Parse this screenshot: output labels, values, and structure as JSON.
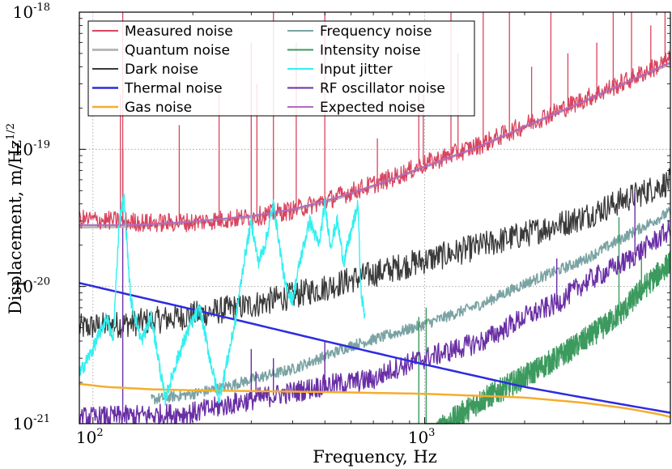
{
  "chart_data": {
    "type": "line",
    "title": "",
    "xlabel": "Frequency, Hz",
    "ylabel": "Displacement, m/Hz",
    "ylabel_exponent": "1/2",
    "xscale": "log",
    "yscale": "log",
    "xlim": [
      91,
      5500
    ],
    "ylim": [
      1e-21,
      1e-18
    ],
    "grid": true,
    "legend_position": "top-left",
    "x_ticks": [
      {
        "value": 100,
        "base": "10",
        "exp": "2"
      },
      {
        "value": 1000,
        "base": "10",
        "exp": "3"
      }
    ],
    "y_ticks": [
      {
        "value": 1e-21,
        "base": "10",
        "exp": "-21"
      },
      {
        "value": 1e-20,
        "base": "10",
        "exp": "-20"
      },
      {
        "value": 1e-19,
        "base": "10",
        "exp": "-19"
      },
      {
        "value": 1e-18,
        "base": "10",
        "exp": "-18"
      }
    ],
    "series": [
      {
        "name": "Measured noise",
        "color": "#d9455f",
        "width": 1.3,
        "points": [
          [
            91,
            3.1e-20
          ],
          [
            120,
            3e-20
          ],
          [
            150,
            2.9e-20
          ],
          [
            200,
            2.95e-20
          ],
          [
            300,
            3.2e-20
          ],
          [
            400,
            3.6e-20
          ],
          [
            500,
            4.2e-20
          ],
          [
            600,
            4.9e-20
          ],
          [
            800,
            6.2e-20
          ],
          [
            1000,
            7.8e-20
          ],
          [
            1500,
            1.1e-19
          ],
          [
            2000,
            1.5e-19
          ],
          [
            3000,
            2.3e-19
          ],
          [
            4000,
            3.1e-19
          ],
          [
            5500,
            4.5e-19
          ]
        ],
        "spikes": [
          [
            121,
            2.5e-19
          ],
          [
            123,
            1e-18
          ],
          [
            182,
            1.5e-19
          ],
          [
            240,
            2.5e-19
          ],
          [
            300,
            6e-19
          ],
          [
            312,
            3e-19
          ],
          [
            350,
            1e-18
          ],
          [
            410,
            6e-19
          ],
          [
            500,
            1e-18
          ],
          [
            720,
            1.2e-19
          ],
          [
            960,
            3e-19
          ],
          [
            990,
            2.5e-19
          ],
          [
            1200,
            1e-18
          ],
          [
            1260,
            5e-19
          ],
          [
            1500,
            1e-18
          ],
          [
            1800,
            1e-18
          ],
          [
            2100,
            4e-19
          ],
          [
            2400,
            1e-18
          ],
          [
            2700,
            5e-19
          ],
          [
            3300,
            6e-19
          ],
          [
            3700,
            1e-18
          ],
          [
            4200,
            1e-18
          ],
          [
            4800,
            8e-19
          ],
          [
            5300,
            1e-18
          ]
        ]
      },
      {
        "name": "Quantum noise",
        "color": "#b8b8b8",
        "width": 3,
        "points": [
          [
            91,
            2.7e-20
          ],
          [
            120,
            2.72e-20
          ],
          [
            150,
            2.78e-20
          ],
          [
            200,
            2.9e-20
          ],
          [
            300,
            3.2e-20
          ],
          [
            400,
            3.6e-20
          ],
          [
            500,
            4.1e-20
          ],
          [
            600,
            4.7e-20
          ],
          [
            800,
            6e-20
          ],
          [
            1000,
            7.4e-20
          ],
          [
            1500,
            1.07e-19
          ],
          [
            2000,
            1.45e-19
          ],
          [
            3000,
            2.2e-19
          ],
          [
            4000,
            3e-19
          ],
          [
            5500,
            4.2e-19
          ]
        ]
      },
      {
        "name": "Dark noise",
        "color": "#3a3a3a",
        "width": 1.3,
        "points": [
          [
            91,
            5e-21
          ],
          [
            120,
            5.3e-21
          ],
          [
            150,
            5.6e-21
          ],
          [
            200,
            6.2e-21
          ],
          [
            300,
            7.3e-21
          ],
          [
            400,
            8.6e-21
          ],
          [
            500,
            9.8e-21
          ],
          [
            600,
            1.12e-20
          ],
          [
            800,
            1.35e-20
          ],
          [
            1000,
            1.55e-20
          ],
          [
            1500,
            2e-20
          ],
          [
            2000,
            2.4e-20
          ],
          [
            3000,
            3.2e-20
          ],
          [
            4000,
            4.3e-20
          ],
          [
            5500,
            5.8e-20
          ]
        ]
      },
      {
        "name": "Thermal noise",
        "color": "#2c2ce0",
        "width": 2.5,
        "points": [
          [
            91,
            1.06e-20
          ],
          [
            200,
            6.8e-21
          ],
          [
            500,
            4e-21
          ],
          [
            1000,
            2.7e-21
          ],
          [
            2000,
            1.85e-21
          ],
          [
            3000,
            1.55e-21
          ],
          [
            5500,
            1.2e-21
          ]
        ]
      },
      {
        "name": "Gas noise",
        "color": "#f5ad2e",
        "width": 2.5,
        "points": [
          [
            91,
            1.95e-21
          ],
          [
            110,
            1.85e-21
          ],
          [
            150,
            1.78e-21
          ],
          [
            200,
            1.75e-21
          ],
          [
            500,
            1.7e-21
          ],
          [
            1000,
            1.65e-21
          ],
          [
            2000,
            1.55e-21
          ],
          [
            3000,
            1.42e-21
          ],
          [
            4000,
            1.3e-21
          ],
          [
            5000,
            1.18e-21
          ],
          [
            5500,
            1.12e-21
          ]
        ]
      },
      {
        "name": "Frequency noise",
        "color": "#7ba3a3",
        "width": 1.6,
        "points": [
          [
            150,
            1.5e-21
          ],
          [
            200,
            1.65e-21
          ],
          [
            250,
            1.85e-21
          ],
          [
            300,
            2.1e-21
          ],
          [
            400,
            2.5e-21
          ],
          [
            500,
            3.1e-21
          ],
          [
            600,
            3.7e-21
          ],
          [
            800,
            4.5e-21
          ],
          [
            1000,
            5.3e-21
          ],
          [
            1500,
            7.5e-21
          ],
          [
            2000,
            1.05e-20
          ],
          [
            3000,
            1.55e-20
          ],
          [
            4000,
            2.3e-20
          ],
          [
            5500,
            3.5e-20
          ]
        ]
      },
      {
        "name": "Intensity noise",
        "color": "#3c9a5e",
        "width": 1.4,
        "points": [
          [
            1000,
            6e-22
          ],
          [
            1100,
            9e-22
          ],
          [
            1300,
            1.2e-21
          ],
          [
            1500,
            1.5e-21
          ],
          [
            2000,
            2.2e-21
          ],
          [
            2500,
            3e-21
          ],
          [
            3000,
            4e-21
          ],
          [
            3500,
            5.2e-21
          ],
          [
            4000,
            6.8e-21
          ],
          [
            4500,
            9.5e-21
          ],
          [
            5000,
            1.2e-20
          ],
          [
            5500,
            1.5e-20
          ]
        ],
        "spikes": [
          [
            960,
            6e-21
          ],
          [
            1010,
            7e-21
          ],
          [
            3850,
            3.2e-20
          ],
          [
            4500,
            1.7e-20
          ]
        ]
      },
      {
        "name": "Input jitter",
        "color": "#33f0f0",
        "width": 1.4,
        "points": [
          [
            91,
            2.3e-21
          ],
          [
            100,
            3.5e-21
          ],
          [
            110,
            6e-21
          ],
          [
            115,
            4e-21
          ],
          [
            120,
            3e-20
          ],
          [
            124,
            4.5e-20
          ],
          [
            130,
            8e-21
          ],
          [
            140,
            4e-21
          ],
          [
            150,
            6e-21
          ],
          [
            165,
            1.5e-21
          ],
          [
            180,
            3e-21
          ],
          [
            195,
            5e-21
          ],
          [
            210,
            7e-21
          ],
          [
            225,
            3e-21
          ],
          [
            240,
            1.5e-21
          ],
          [
            255,
            3e-21
          ],
          [
            270,
            6e-21
          ],
          [
            285,
            1.5e-20
          ],
          [
            300,
            3e-20
          ],
          [
            315,
            1.5e-20
          ],
          [
            330,
            2e-20
          ],
          [
            350,
            4e-20
          ],
          [
            365,
            2e-20
          ],
          [
            380,
            1e-20
          ],
          [
            400,
            8e-21
          ],
          [
            420,
            1.5e-20
          ],
          [
            450,
            3e-20
          ],
          [
            480,
            2e-20
          ],
          [
            500,
            4e-20
          ],
          [
            520,
            2e-20
          ],
          [
            545,
            3e-20
          ],
          [
            570,
            1.5e-20
          ],
          [
            600,
            2.5e-20
          ],
          [
            630,
            4e-20
          ],
          [
            640,
            1e-20
          ],
          [
            660,
            6e-21
          ]
        ]
      },
      {
        "name": "RF oscillator noise",
        "color": "#6a2fa6",
        "width": 1.4,
        "points": [
          [
            91,
            1.1e-21
          ],
          [
            150,
            1.15e-21
          ],
          [
            200,
            1.2e-21
          ],
          [
            300,
            1.5e-21
          ],
          [
            400,
            1.7e-21
          ],
          [
            500,
            1.9e-21
          ],
          [
            700,
            2.1e-21
          ],
          [
            800,
            2.5e-21
          ],
          [
            1000,
            3e-21
          ],
          [
            1500,
            4e-21
          ],
          [
            2000,
            6e-21
          ],
          [
            2500,
            7.5e-21
          ],
          [
            3000,
            1.05e-20
          ],
          [
            4000,
            1.5e-20
          ],
          [
            5000,
            2.2e-20
          ],
          [
            5500,
            2.6e-20
          ]
        ],
        "spikes": [
          [
            123,
            1e-19
          ],
          [
            300,
            3.5e-21
          ],
          [
            310,
            2.4e-21
          ],
          [
            350,
            3e-21
          ],
          [
            500,
            4e-21
          ],
          [
            2500,
            1.6e-20
          ],
          [
            4300,
            5e-20
          ]
        ]
      },
      {
        "name": "Expected noise",
        "color": "#b06cbf",
        "width": 2,
        "points": [
          [
            91,
            2.8e-20
          ],
          [
            120,
            2.8e-20
          ],
          [
            150,
            2.85e-20
          ],
          [
            200,
            2.97e-20
          ],
          [
            300,
            3.27e-20
          ],
          [
            400,
            3.66e-20
          ],
          [
            500,
            4.2e-20
          ],
          [
            600,
            4.8e-20
          ],
          [
            800,
            6.1e-20
          ],
          [
            1000,
            7.5e-20
          ],
          [
            1500,
            1.08e-19
          ],
          [
            2000,
            1.47e-19
          ],
          [
            3000,
            2.23e-19
          ],
          [
            4000,
            3.05e-19
          ],
          [
            5500,
            4.3e-19
          ]
        ]
      }
    ]
  }
}
